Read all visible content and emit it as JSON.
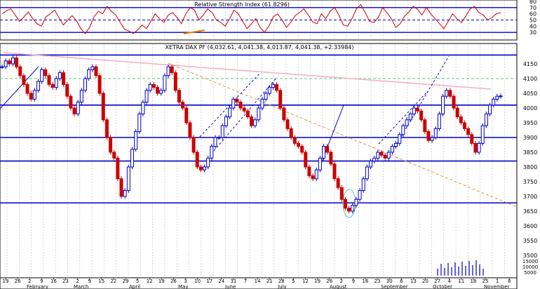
{
  "chart_data": [
    {
      "type": "line",
      "title": "Relative Strength Index (61.8296)",
      "ylim": [
        20,
        80
      ],
      "yticks": [
        30,
        40,
        50,
        60,
        70,
        80
      ],
      "reference_lines": [
        30,
        50,
        70
      ],
      "series": [
        {
          "name": "RSI",
          "color": "#cc0000",
          "values": [
            60,
            65,
            68,
            58,
            48,
            55,
            63,
            52,
            44,
            40,
            55,
            60,
            66,
            54,
            42,
            50,
            57,
            49,
            36,
            28,
            38,
            55,
            64,
            60,
            72,
            64,
            58,
            46,
            35,
            32,
            28,
            34,
            42,
            36,
            48,
            60,
            52,
            46,
            58,
            62,
            54,
            44,
            60,
            70,
            66,
            50,
            58,
            68,
            62,
            50,
            46,
            40,
            52,
            66,
            60,
            48,
            36,
            44,
            52,
            38,
            30,
            40,
            55,
            60,
            50,
            38,
            46,
            57,
            62,
            68,
            58,
            47,
            44,
            60,
            52,
            64,
            70,
            58,
            42,
            40,
            52,
            68,
            75,
            62,
            48,
            46,
            54,
            70,
            62,
            52,
            38,
            44,
            56,
            63,
            72,
            67,
            58,
            70,
            60,
            52,
            44,
            36,
            48,
            60,
            52,
            46,
            56,
            68,
            72,
            62,
            58,
            50,
            54,
            60,
            62
          ]
        },
        {
          "name": "",
          "color": "#f08000",
          "values": []
        }
      ]
    },
    {
      "type": "line",
      "title": "XETRA DAX PF (4,032.61, 4,041.38, 4,013.87, 4,041.38, +2.33984)",
      "ylim": [
        3450,
        4200
      ],
      "yticks": [
        3500,
        3550,
        3600,
        3650,
        3700,
        3750,
        3800,
        3850,
        3900,
        3950,
        4000,
        4050,
        4100,
        4150
      ],
      "horizontal_lines": [
        4180,
        4010,
        3900,
        3820,
        3678
      ],
      "dashed_line": 4100,
      "x_tick_labels": [
        "19",
        "26",
        "2",
        "9",
        "16",
        "23",
        "2",
        "9",
        "15",
        "22",
        "29",
        "5",
        "12",
        "19",
        "26",
        "3",
        "10",
        "17",
        "24",
        "31",
        "7",
        "14",
        "21",
        "28",
        "5",
        "12",
        "19",
        "26",
        "2",
        "9",
        "16",
        "23",
        "30",
        "6",
        "13",
        "20",
        "27",
        "4",
        "11",
        "18",
        "25",
        "1",
        "8"
      ],
      "month_labels": [
        "February",
        "March",
        "April",
        "May",
        "June",
        "July",
        "August",
        "September",
        "October",
        "November"
      ],
      "volume_scale_labels": [
        "15000",
        "10000",
        "5000"
      ],
      "series": [
        {
          "name": "Price",
          "color": "#cc0000",
          "values": [
            4140,
            4160,
            4150,
            4170,
            4140,
            4110,
            4080,
            4050,
            4030,
            4060,
            4090,
            4130,
            4110,
            4080,
            4070,
            4100,
            4120,
            4080,
            4040,
            4000,
            3980,
            4020,
            4060,
            4100,
            4130,
            4140,
            4110,
            4050,
            3960,
            3900,
            3850,
            3830,
            3760,
            3700,
            3720,
            3800,
            3860,
            3920,
            3980,
            4020,
            4060,
            4080,
            4070,
            4050,
            4060,
            4110,
            4140,
            4120,
            4060,
            4020,
            4000,
            3950,
            3900,
            3850,
            3800,
            3790,
            3800,
            3830,
            3870,
            3900,
            3900,
            3940,
            3970,
            4000,
            4030,
            4020,
            4000,
            3990,
            3970,
            3940,
            3960,
            4000,
            4030,
            4050,
            4070,
            4080,
            4060,
            4000,
            3960,
            3930,
            3900,
            3880,
            3870,
            3850,
            3800,
            3770,
            3760,
            3790,
            3830,
            3870,
            3850,
            3810,
            3760,
            3730,
            3690,
            3660,
            3650,
            3670,
            3690,
            3720,
            3760,
            3800,
            3820,
            3830,
            3850,
            3840,
            3830,
            3850,
            3870,
            3880,
            3910,
            3940,
            3960,
            3980,
            4000,
            3990,
            3960,
            3920,
            3890,
            3900,
            3930,
            3980,
            4040,
            4060,
            4040,
            4000,
            3970,
            3950,
            3930,
            3910,
            3880,
            3850,
            3880,
            3940,
            3980,
            4010,
            4030,
            4040,
            4041
          ]
        }
      ]
    }
  ]
}
